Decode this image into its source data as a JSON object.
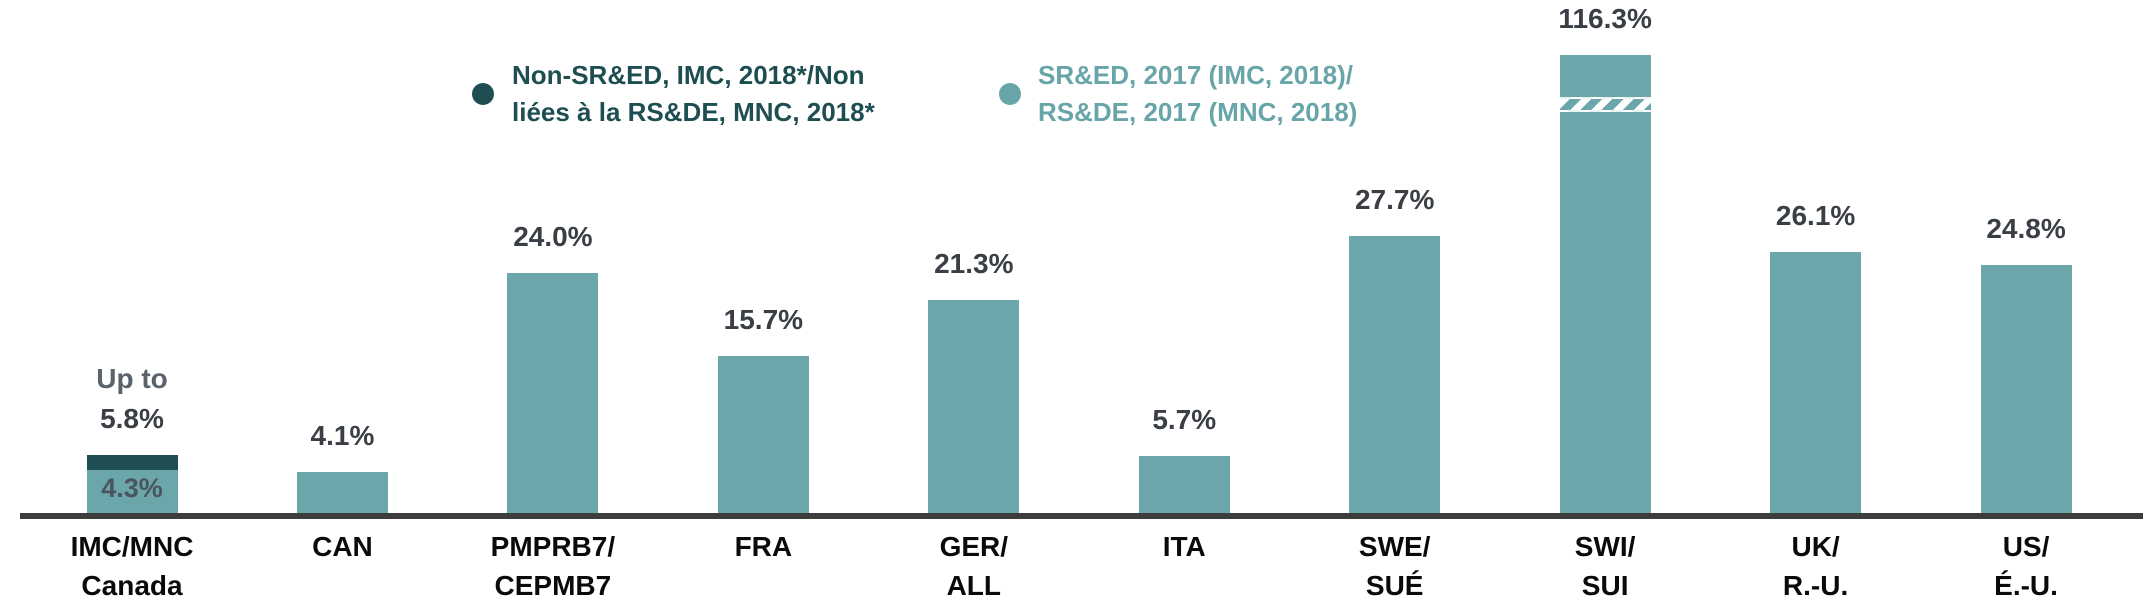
{
  "colors": {
    "bar_light": "#6ba7aa",
    "bar_dark": "#1f4e52",
    "axis": "#3d3d3d",
    "value_label": "#3a3f45",
    "up_to_label": "#5b626b",
    "inner_label": "#4a555d",
    "tick_label": "#0a0a0a",
    "legend_dark_text": "#1f4e52",
    "legend_light_text": "#68a5a9"
  },
  "legend": {
    "items": [
      {
        "id": "non-sred-dark",
        "color": "#1f4e52",
        "lines": [
          "Non-SR&ED, IMC, 2018*/Non",
          "liées à la RS&DE, MNC, 2018*"
        ],
        "label": "Non-SR&ED, IMC, 2018*/Non liées à la RS&DE, MNC, 2018*"
      },
      {
        "id": "sred-light",
        "color": "#68a5a9",
        "lines": [
          "SR&ED, 2017 (IMC, 2018)/",
          "RS&DE, 2017 (MNC, 2018)"
        ],
        "label": "SR&ED, 2017 (IMC, 2018)/RS&DE, 2017 (MNC, 2018)"
      }
    ]
  },
  "chart_data": {
    "type": "bar",
    "unit": "%",
    "grid": false,
    "legend_position": "top",
    "ylim": [
      0,
      120
    ],
    "axis_break_on": "SWI/SUI",
    "categories": [
      "IMC/MNC Canada",
      "CAN",
      "PMPRB7/CEPMB7",
      "FRA",
      "GER/ALL",
      "ITA",
      "SWE/SUÉ",
      "SWI/SUI",
      "UK/R.-U.",
      "US/É.-U."
    ],
    "series": [
      {
        "name": "SR&ED, 2017 (IMC, 2018)/RS&DE, 2017 (MNC, 2018)",
        "color": "#6ba7aa",
        "values": [
          4.3,
          4.1,
          24.0,
          15.7,
          21.3,
          5.7,
          27.7,
          116.3,
          26.1,
          24.8
        ]
      },
      {
        "name": "Non-SR&ED, IMC, 2018*/Non liées à la RS&DE, MNC, 2018*",
        "color": "#1f4e52",
        "values": [
          1.5,
          0,
          0,
          0,
          0,
          0,
          0,
          0,
          0,
          0
        ]
      }
    ],
    "bars": [
      {
        "tick_lines": [
          "IMC/MNC",
          "Canada"
        ],
        "value_label_lines": [
          "Up to",
          "5.8%"
        ],
        "inner_label": "4.3%",
        "light_value": 4.3,
        "dark_value": 1.5,
        "total": 5.8
      },
      {
        "tick_lines": [
          "CAN"
        ],
        "value_label_lines": [
          "4.1%"
        ],
        "light_value": 4.1
      },
      {
        "tick_lines": [
          "PMPRB7/",
          "CEPMB7"
        ],
        "value_label_lines": [
          "24.0%"
        ],
        "light_value": 24.0
      },
      {
        "tick_lines": [
          "FRA"
        ],
        "value_label_lines": [
          "15.7%"
        ],
        "light_value": 15.7
      },
      {
        "tick_lines": [
          "GER/",
          "ALL"
        ],
        "value_label_lines": [
          "21.3%"
        ],
        "light_value": 21.3
      },
      {
        "tick_lines": [
          "ITA"
        ],
        "value_label_lines": [
          "5.7%"
        ],
        "light_value": 5.7
      },
      {
        "tick_lines": [
          "SWE/",
          "SUÉ"
        ],
        "value_label_lines": [
          "27.7%"
        ],
        "light_value": 27.7
      },
      {
        "tick_lines": [
          "SWI/",
          "SUI"
        ],
        "value_label_lines": [
          "116.3%"
        ],
        "light_value": 116.3,
        "truncated": true
      },
      {
        "tick_lines": [
          "UK/",
          "R.-U."
        ],
        "value_label_lines": [
          "26.1%"
        ],
        "light_value": 26.1
      },
      {
        "tick_lines": [
          "US/",
          "É.-U."
        ],
        "value_label_lines": [
          "24.8%"
        ],
        "light_value": 24.8
      }
    ]
  }
}
